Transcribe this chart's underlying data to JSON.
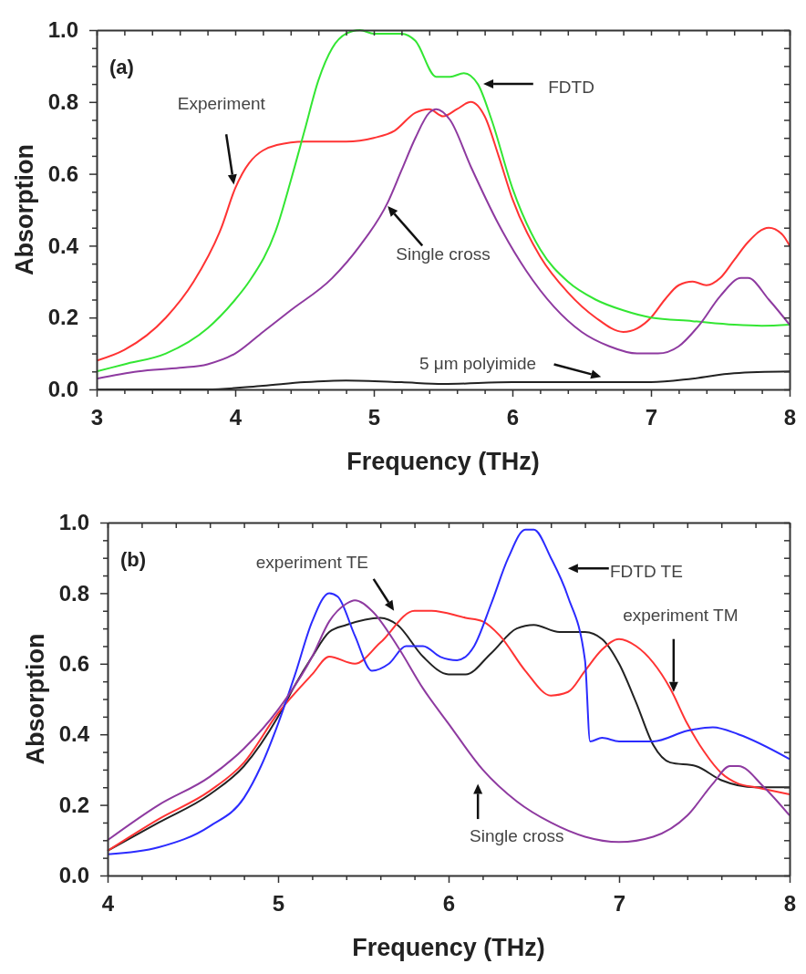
{
  "chart_data": [
    {
      "type": "line",
      "title": "(a)",
      "xlabel": "Frequency (THz)",
      "ylabel": "Absorption",
      "grid": false,
      "marker": "none",
      "line_style": "solid",
      "xlim": [
        3,
        8
      ],
      "ylim": [
        0,
        1
      ],
      "xticks": [
        3,
        {
          "value": 3.2,
          "label": null
        },
        {
          "value": 3.4,
          "label": null
        },
        {
          "value": 3.6,
          "label": null
        },
        {
          "value": 3.8,
          "label": null
        },
        4,
        {
          "value": 4.2,
          "label": null
        },
        {
          "value": 4.4,
          "label": null
        },
        {
          "value": 4.6,
          "label": null
        },
        {
          "value": 4.8,
          "label": null
        },
        5,
        {
          "value": 5.2,
          "label": null
        },
        {
          "value": 5.4,
          "label": null
        },
        {
          "value": 5.6,
          "label": null
        },
        {
          "value": 5.8,
          "label": null
        },
        6,
        {
          "value": 6.2,
          "label": null
        },
        {
          "value": 6.4,
          "label": null
        },
        {
          "value": 6.6,
          "label": null
        },
        {
          "value": 6.8,
          "label": null
        },
        7,
        {
          "value": 7.2,
          "label": null
        },
        {
          "value": 7.4,
          "label": null
        },
        {
          "value": 7.6,
          "label": null
        },
        {
          "value": 7.8,
          "label": null
        },
        8
      ],
      "yticks": [
        {
          "value": 0,
          "label": "0.0"
        },
        {
          "value": 0.05,
          "label": null
        },
        {
          "value": 0.1,
          "label": null
        },
        {
          "value": 0.15,
          "label": null
        },
        0.2,
        {
          "value": 0.25,
          "label": null
        },
        {
          "value": 0.3,
          "label": null
        },
        {
          "value": 0.35,
          "label": null
        },
        0.4,
        {
          "value": 0.45,
          "label": null
        },
        {
          "value": 0.5,
          "label": null
        },
        {
          "value": 0.55,
          "label": null
        },
        0.6,
        {
          "value": 0.65,
          "label": null
        },
        {
          "value": 0.7,
          "label": null
        },
        {
          "value": 0.75,
          "label": null
        },
        0.8,
        {
          "value": 0.85,
          "label": null
        },
        {
          "value": 0.9,
          "label": null
        },
        {
          "value": 0.95,
          "label": null
        },
        {
          "value": 1,
          "label": "1.0"
        }
      ],
      "series": [
        {
          "color": "#ff3333",
          "x": [
            3,
            3.2,
            3.5,
            3.7,
            3.9,
            4.0,
            4.1,
            4.3,
            4.5,
            4.8,
            5.0,
            5.15,
            5.3,
            5.4,
            5.5,
            5.6,
            5.7,
            5.8,
            5.9,
            6.0,
            6.2,
            6.4,
            6.6,
            6.8,
            6.9,
            7.0,
            7.1,
            7.2,
            7.3,
            7.4,
            7.5,
            7.6,
            7.7,
            7.85,
            7.95,
            8.0
          ],
          "values": [
            0.08,
            0.11,
            0.2,
            0.3,
            0.45,
            0.56,
            0.63,
            0.68,
            0.69,
            0.69,
            0.7,
            0.72,
            0.77,
            0.78,
            0.76,
            0.78,
            0.8,
            0.76,
            0.65,
            0.53,
            0.37,
            0.27,
            0.2,
            0.16,
            0.17,
            0.2,
            0.25,
            0.29,
            0.3,
            0.29,
            0.31,
            0.36,
            0.41,
            0.45,
            0.43,
            0.4
          ]
        },
        {
          "color": "#33e633",
          "x": [
            3,
            3.2,
            3.5,
            3.8,
            4.0,
            4.1,
            4.3,
            4.4,
            4.5,
            4.6,
            4.7,
            4.8,
            4.9,
            5.0,
            5.2,
            5.3,
            5.45,
            5.55,
            5.65,
            5.75,
            5.85,
            6.0,
            6.2,
            6.4,
            6.6,
            6.8,
            7.0,
            7.3,
            7.6,
            7.8,
            8.0
          ],
          "values": [
            0.05,
            0.07,
            0.1,
            0.17,
            0.25,
            0.3,
            0.45,
            0.58,
            0.72,
            0.86,
            0.95,
            0.99,
            1.0,
            0.99,
            0.99,
            0.97,
            0.87,
            0.87,
            0.88,
            0.85,
            0.75,
            0.56,
            0.39,
            0.3,
            0.25,
            0.22,
            0.2,
            0.19,
            0.18,
            0.177,
            0.18
          ]
        },
        {
          "color": "#8e3aa0",
          "x": [
            3,
            3.3,
            3.6,
            3.8,
            4.0,
            4.2,
            4.4,
            4.7,
            4.9,
            5.1,
            5.2,
            5.3,
            5.4,
            5.45,
            5.55,
            5.7,
            5.9,
            6.1,
            6.3,
            6.5,
            6.7,
            6.9,
            7.05,
            7.2,
            7.35,
            7.5,
            7.65,
            7.7,
            7.85,
            8.0
          ],
          "values": [
            0.03,
            0.05,
            0.06,
            0.07,
            0.1,
            0.16,
            0.22,
            0.31,
            0.4,
            0.52,
            0.61,
            0.7,
            0.77,
            0.78,
            0.75,
            0.62,
            0.46,
            0.33,
            0.23,
            0.16,
            0.12,
            0.1,
            0.1,
            0.12,
            0.18,
            0.26,
            0.31,
            0.31,
            0.25,
            0.18
          ]
        },
        {
          "color": "#222222",
          "x": [
            3,
            3.8,
            4.2,
            4.5,
            4.8,
            5.2,
            5.5,
            6.0,
            6.5,
            7.0,
            7.3,
            7.6,
            8.0
          ],
          "values": [
            0,
            0,
            0.01,
            0.02,
            0.025,
            0.02,
            0.015,
            0.02,
            0.02,
            0.02,
            0.03,
            0.045,
            0.05
          ]
        }
      ],
      "annotations": [
        "Experiment",
        "FDTD",
        "Single cross",
        "5 μm polyimide"
      ]
    },
    {
      "type": "line",
      "title": "(b)",
      "xlabel": "Frequency (THz)",
      "ylabel": "Absorption",
      "grid": false,
      "marker": "none",
      "line_style": "solid",
      "xlim": [
        4,
        8
      ],
      "ylim": [
        0,
        1
      ],
      "xticks": [
        4,
        {
          "value": 4.2,
          "label": null
        },
        {
          "value": 4.4,
          "label": null
        },
        {
          "value": 4.6,
          "label": null
        },
        {
          "value": 4.8,
          "label": null
        },
        5,
        {
          "value": 5.2,
          "label": null
        },
        {
          "value": 5.4,
          "label": null
        },
        {
          "value": 5.6,
          "label": null
        },
        {
          "value": 5.8,
          "label": null
        },
        6,
        {
          "value": 6.2,
          "label": null
        },
        {
          "value": 6.4,
          "label": null
        },
        {
          "value": 6.6,
          "label": null
        },
        {
          "value": 6.8,
          "label": null
        },
        7,
        {
          "value": 7.2,
          "label": null
        },
        {
          "value": 7.4,
          "label": null
        },
        {
          "value": 7.6,
          "label": null
        },
        {
          "value": 7.8,
          "label": null
        },
        8
      ],
      "yticks": [
        {
          "value": 0,
          "label": "0.0"
        },
        {
          "value": 0.05,
          "label": null
        },
        {
          "value": 0.1,
          "label": null
        },
        {
          "value": 0.15,
          "label": null
        },
        0.2,
        {
          "value": 0.25,
          "label": null
        },
        {
          "value": 0.3,
          "label": null
        },
        {
          "value": 0.35,
          "label": null
        },
        0.4,
        {
          "value": 0.45,
          "label": null
        },
        {
          "value": 0.5,
          "label": null
        },
        {
          "value": 0.55,
          "label": null
        },
        0.6,
        {
          "value": 0.65,
          "label": null
        },
        {
          "value": 0.7,
          "label": null
        },
        {
          "value": 0.75,
          "label": null
        },
        0.8,
        {
          "value": 0.85,
          "label": null
        },
        {
          "value": 0.9,
          "label": null
        },
        {
          "value": 0.95,
          "label": null
        },
        {
          "value": 1,
          "label": "1.0"
        }
      ],
      "series": [
        {
          "color": "#222222",
          "x": [
            4,
            4.3,
            4.6,
            4.8,
            5.0,
            5.1,
            5.2,
            5.3,
            5.4,
            5.6,
            5.7,
            5.85,
            6.0,
            6.1,
            6.25,
            6.4,
            6.5,
            6.65,
            6.8,
            6.9,
            7.0,
            7.1,
            7.2,
            7.3,
            7.45,
            7.6,
            7.8,
            8.0
          ],
          "values": [
            0.07,
            0.15,
            0.23,
            0.31,
            0.45,
            0.54,
            0.62,
            0.69,
            0.71,
            0.73,
            0.71,
            0.62,
            0.57,
            0.57,
            0.63,
            0.7,
            0.71,
            0.69,
            0.69,
            0.67,
            0.6,
            0.49,
            0.37,
            0.32,
            0.31,
            0.27,
            0.25,
            0.25
          ]
        },
        {
          "color": "#ff3333",
          "x": [
            4,
            4.3,
            4.6,
            4.8,
            5.0,
            5.2,
            5.3,
            5.45,
            5.6,
            5.8,
            5.9,
            6.1,
            6.2,
            6.3,
            6.45,
            6.6,
            6.7,
            6.8,
            6.9,
            7.0,
            7.1,
            7.3,
            7.4,
            7.5,
            7.6,
            7.7,
            7.8,
            8.0
          ],
          "values": [
            0.07,
            0.16,
            0.24,
            0.32,
            0.46,
            0.57,
            0.62,
            0.6,
            0.66,
            0.75,
            0.75,
            0.73,
            0.72,
            0.68,
            0.58,
            0.51,
            0.52,
            0.58,
            0.64,
            0.67,
            0.65,
            0.53,
            0.43,
            0.35,
            0.29,
            0.26,
            0.25,
            0.23
          ]
        },
        {
          "color": "#2b2bff",
          "x": [
            4,
            4.3,
            4.6,
            4.8,
            4.9,
            5.0,
            5.1,
            5.2,
            5.3,
            5.35,
            5.45,
            5.55,
            5.65,
            5.75,
            5.85,
            5.95,
            6.05,
            6.15,
            6.25,
            6.35,
            6.45,
            6.5,
            6.6,
            6.7,
            6.8,
            6.83,
            6.9,
            7.0,
            7.2,
            7.4,
            7.55,
            7.7,
            8.0
          ],
          "values": [
            0.06,
            0.08,
            0.14,
            0.22,
            0.31,
            0.43,
            0.57,
            0.72,
            0.8,
            0.79,
            0.68,
            0.58,
            0.6,
            0.65,
            0.65,
            0.62,
            0.61,
            0.65,
            0.77,
            0.9,
            0.98,
            0.98,
            0.9,
            0.79,
            0.61,
            0.38,
            0.39,
            0.38,
            0.38,
            0.41,
            0.42,
            0.4,
            0.33
          ]
        },
        {
          "color": "#8e3aa0",
          "x": [
            4,
            4.3,
            4.6,
            4.8,
            5.0,
            5.2,
            5.3,
            5.4,
            5.45,
            5.55,
            5.7,
            5.85,
            6.0,
            6.2,
            6.4,
            6.6,
            6.8,
            7.0,
            7.2,
            7.4,
            7.55,
            7.65,
            7.7,
            7.85,
            8.0
          ],
          "values": [
            0.1,
            0.2,
            0.28,
            0.36,
            0.47,
            0.62,
            0.72,
            0.77,
            0.78,
            0.75,
            0.65,
            0.53,
            0.43,
            0.3,
            0.21,
            0.15,
            0.11,
            0.095,
            0.11,
            0.17,
            0.26,
            0.31,
            0.31,
            0.25,
            0.17
          ]
        }
      ],
      "annotations": [
        "experiment TE",
        "FDTD TE",
        "experiment TM",
        "Single cross"
      ]
    }
  ]
}
